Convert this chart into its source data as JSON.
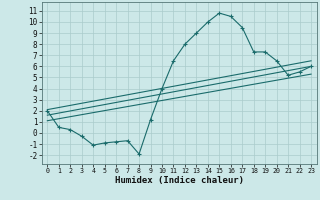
{
  "title": "",
  "xlabel": "Humidex (Indice chaleur)",
  "bg_color": "#cce8e8",
  "grid_color": "#aacccc",
  "line_color": "#1a6b6b",
  "xlim": [
    -0.5,
    23.5
  ],
  "ylim": [
    -2.8,
    11.8
  ],
  "xticks": [
    0,
    1,
    2,
    3,
    4,
    5,
    6,
    7,
    8,
    9,
    10,
    11,
    12,
    13,
    14,
    15,
    16,
    17,
    18,
    19,
    20,
    21,
    22,
    23
  ],
  "yticks": [
    -2,
    -1,
    0,
    1,
    2,
    3,
    4,
    5,
    6,
    7,
    8,
    9,
    10,
    11
  ],
  "main_line_x": [
    0,
    1,
    2,
    3,
    4,
    5,
    6,
    7,
    8,
    9,
    10,
    11,
    12,
    13,
    14,
    15,
    16,
    17,
    18,
    19,
    20,
    21,
    22,
    23
  ],
  "main_line_y": [
    2.0,
    0.5,
    0.3,
    -0.3,
    -1.1,
    -0.9,
    -0.8,
    -0.7,
    -1.9,
    1.2,
    4.0,
    6.5,
    8.0,
    9.0,
    10.0,
    10.8,
    10.5,
    9.5,
    7.3,
    7.3,
    6.5,
    5.2,
    5.5,
    6.0
  ],
  "line2_x": [
    0,
    23
  ],
  "line2_y": [
    2.1,
    6.5
  ],
  "line3_x": [
    0,
    23
  ],
  "line3_y": [
    1.6,
    6.0
  ],
  "line4_x": [
    0,
    23
  ],
  "line4_y": [
    1.1,
    5.3
  ]
}
